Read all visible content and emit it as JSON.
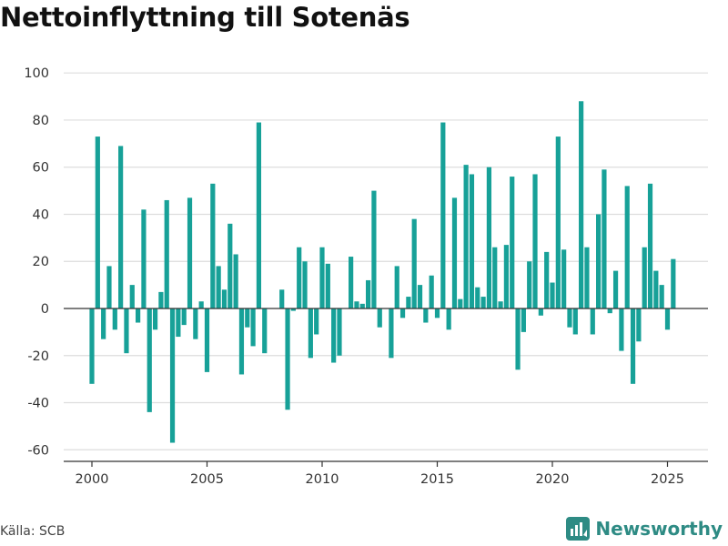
{
  "title": "Nettoinflyttning till Sotenäs",
  "source": "Källa: SCB",
  "brand": {
    "name": "Newsworthy"
  },
  "colors": {
    "bar": "#17a198",
    "grid": "#dddddd",
    "axis": "#333333",
    "brand": "#2e8b84"
  },
  "chart_data": {
    "type": "bar",
    "x_start": 2000,
    "x_step": 0.25,
    "xticks": [
      2000,
      2005,
      2010,
      2015,
      2020,
      2025
    ],
    "ylim": [
      -60,
      100
    ],
    "yticks": [
      -60,
      -40,
      -20,
      0,
      20,
      40,
      60,
      80,
      100
    ],
    "grid": true,
    "values": [
      -32,
      73,
      -13,
      18,
      -9,
      69,
      -19,
      10,
      -6,
      42,
      -44,
      -9,
      7,
      46,
      -57,
      -12,
      -7,
      47,
      -13,
      3,
      -27,
      53,
      18,
      8,
      36,
      23,
      -28,
      -8,
      -16,
      79,
      -19,
      0,
      0,
      8,
      -43,
      -1,
      26,
      20,
      -21,
      -11,
      26,
      19,
      -23,
      -20,
      0,
      22,
      3,
      2,
      12,
      50,
      -8,
      0,
      -21,
      18,
      -4,
      5,
      38,
      10,
      -6,
      14,
      -4,
      79,
      -9,
      47,
      4,
      61,
      57,
      9,
      5,
      60,
      26,
      3,
      27,
      56,
      -26,
      -10,
      20,
      57,
      -3,
      24,
      11,
      73,
      25,
      -8,
      -11,
      88,
      26,
      -11,
      40,
      59,
      -2,
      16,
      -18,
      52,
      -32,
      -14,
      26,
      53,
      16,
      10,
      -9,
      21
    ]
  }
}
